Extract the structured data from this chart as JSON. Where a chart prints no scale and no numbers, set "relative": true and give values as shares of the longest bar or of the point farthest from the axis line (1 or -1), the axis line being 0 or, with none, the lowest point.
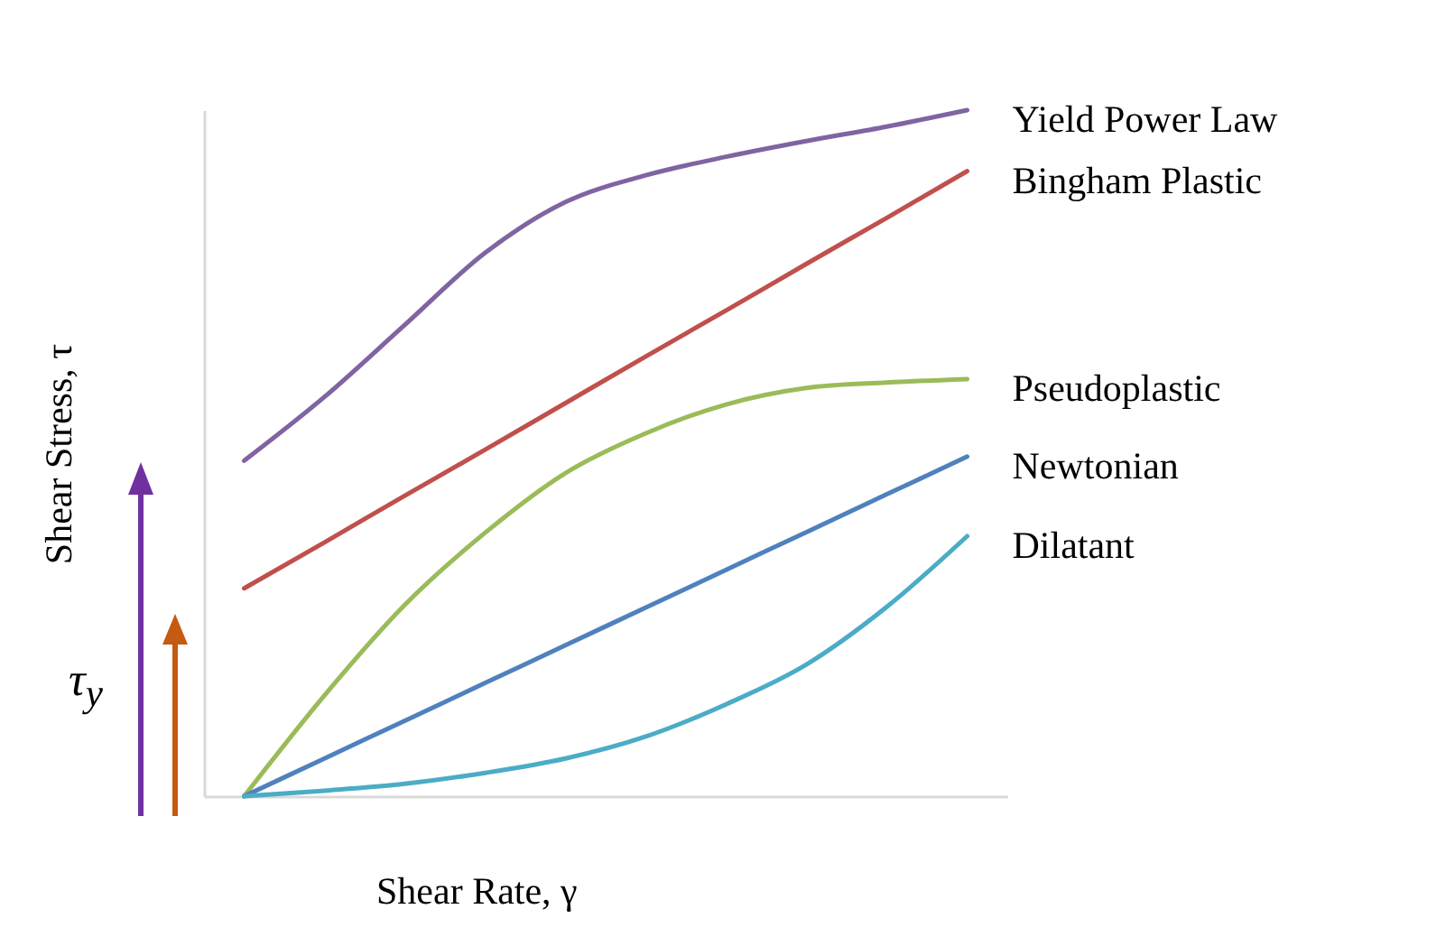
{
  "chart_data": {
    "type": "line",
    "relative": true,
    "xlabel": "Shear Rate, γ",
    "ylabel": "Shear Stress, τ",
    "categories": [
      null,
      null,
      null,
      null,
      null,
      null,
      null,
      null,
      null,
      null
    ],
    "annotations": [
      "τ$_{y}$"
    ],
    "series": [
      {
        "name": "Yield Power Law",
        "color": "#8064a2",
        "values": [
          0.489,
          0.582,
          0.687,
          0.792,
          0.866,
          0.905,
          0.932,
          0.955,
          0.976,
          1
        ]
      },
      {
        "name": "Bingham Plastic",
        "color": "#c0504d",
        "values": [
          0.303,
          0.37,
          0.438,
          0.505,
          0.573,
          0.641,
          0.708,
          0.776,
          0.843,
          0.911
        ]
      },
      {
        "name": "Pseudoplastic",
        "color": "#9bbb59",
        "values": [
          0,
          0.147,
          0.279,
          0.384,
          0.471,
          0.529,
          0.571,
          0.595,
          0.603,
          0.608
        ]
      },
      {
        "name": "Newtonian",
        "color": "#4f81bd",
        "values": [
          0,
          0.055,
          0.11,
          0.165,
          0.22,
          0.275,
          0.33,
          0.385,
          0.44,
          0.495
        ]
      },
      {
        "name": "Dilatant",
        "color": "#4bacc6",
        "values": [
          0,
          0.008,
          0.018,
          0.034,
          0.055,
          0.087,
          0.134,
          0.192,
          0.276,
          0.379
        ]
      }
    ]
  }
}
